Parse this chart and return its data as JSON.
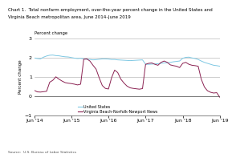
{
  "title_line1": "Chart 1.  Total nonfarm employment, over-the-year percent change in the United States and",
  "title_line2": "Virginia Beach metropolitan area, June 2014–June 2019",
  "ylabel": "Percent change",
  "source": "Source:  U.S. Bureau of Labor Statistics",
  "xlim_labels": [
    "Jun '14",
    "Jun '15",
    "Jun '16",
    "Jun '17",
    "Jun '18",
    "Jun '19"
  ],
  "ylim": [
    -1.0,
    3.0
  ],
  "yticks": [
    -1.0,
    0.0,
    1.0,
    2.0,
    3.0
  ],
  "us_color": "#7ec8e3",
  "vb_color": "#8b2252",
  "us_label": "United States",
  "vb_label": "Virginia Beach-Norfolk-Newport News",
  "n_months": 61,
  "xtick_positions": [
    0,
    12,
    24,
    36,
    48,
    60
  ],
  "us_data": [
    1.98,
    1.95,
    1.93,
    2.02,
    2.08,
    2.12,
    2.13,
    2.1,
    2.09,
    2.06,
    2.04,
    2.03,
    2.0,
    1.97,
    1.95,
    1.96,
    1.93,
    1.91,
    1.9,
    1.88,
    1.89,
    1.91,
    1.93,
    1.93,
    1.92,
    1.9,
    1.9,
    1.88,
    1.87,
    1.86,
    1.85,
    1.84,
    1.85,
    1.86,
    1.87,
    1.88,
    1.65,
    1.65,
    1.66,
    1.67,
    1.68,
    1.7,
    1.72,
    1.73,
    1.75,
    1.78,
    1.8,
    1.82,
    1.96,
    2.01,
    2.02,
    1.98,
    1.95,
    1.9,
    1.82,
    1.75,
    1.7,
    1.65,
    1.6,
    1.58,
    1.55
  ],
  "vb_data": [
    0.3,
    0.22,
    0.21,
    0.23,
    0.25,
    0.72,
    0.82,
    1.0,
    0.88,
    0.78,
    0.7,
    0.67,
    0.65,
    0.62,
    0.58,
    0.62,
    1.91,
    1.93,
    1.82,
    1.6,
    1.4,
    0.95,
    0.55,
    0.4,
    0.37,
    0.95,
    1.35,
    1.22,
    0.88,
    0.68,
    0.52,
    0.43,
    0.4,
    0.38,
    0.36,
    0.39,
    1.65,
    1.7,
    1.72,
    1.65,
    1.6,
    1.75,
    1.82,
    1.75,
    1.62,
    1.58,
    1.55,
    1.48,
    1.7,
    1.75,
    1.65,
    1.6,
    1.58,
    1.55,
    0.88,
    0.48,
    0.28,
    0.2,
    0.16,
    0.18,
    -0.06
  ]
}
